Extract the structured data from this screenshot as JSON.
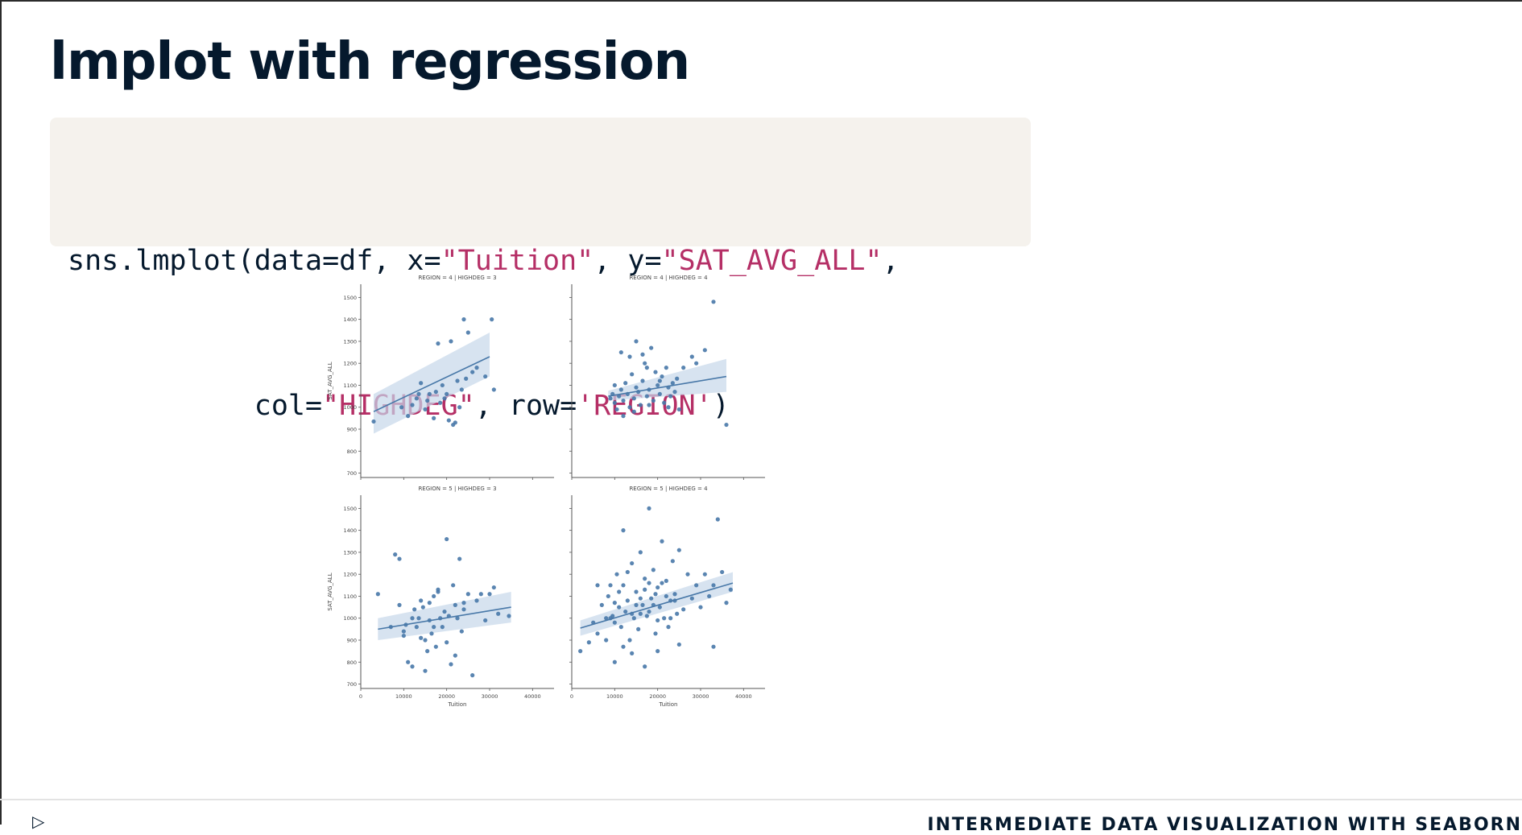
{
  "slide": {
    "title": "lmplot with regression",
    "footer": "INTERMEDIATE DATA VISUALIZATION WITH SEABORN",
    "logo_icon": "datacamp-logo-icon"
  },
  "code": {
    "line1": [
      {
        "t": "sns.lmplot(data=df, x=",
        "c": "plain"
      },
      {
        "t": "\"Tuition\"",
        "c": "str"
      },
      {
        "t": ", y=",
        "c": "plain"
      },
      {
        "t": "\"SAT_AVG_ALL\"",
        "c": "str"
      },
      {
        "t": ",",
        "c": "plain"
      }
    ],
    "line2": [
      {
        "t": "           col=",
        "c": "plain"
      },
      {
        "t": "\"HIGHDEG\"",
        "c": "str"
      },
      {
        "t": ", row=",
        "c": "plain"
      },
      {
        "t": "'REGION'",
        "c": "str"
      },
      {
        "t": ")",
        "c": "plain"
      }
    ]
  },
  "chart_data": {
    "type": "scatter",
    "point_color": "#4878a8",
    "band_color": "#c6d7ea",
    "xlabel": "Tuition",
    "ylabel": "SAT_AVG_ALL",
    "xlim": [
      0,
      45000
    ],
    "ylim": [
      680,
      1560
    ],
    "xticks": [
      0,
      10000,
      20000,
      30000,
      40000
    ],
    "yticks": [
      700,
      800,
      900,
      1000,
      1100,
      1200,
      1300,
      1400,
      1500
    ],
    "panels": [
      {
        "title": "REGION = 4 | HIGHDEG = 3",
        "row": 0,
        "col": 0,
        "regression": {
          "x": [
            3000,
            30000
          ],
          "y": [
            980,
            1230
          ],
          "band_lo": [
            880,
            1140
          ],
          "band_hi": [
            1060,
            1340
          ]
        },
        "points": [
          [
            3000,
            935
          ],
          [
            9500,
            1000
          ],
          [
            11000,
            960
          ],
          [
            12000,
            1010
          ],
          [
            13000,
            1040
          ],
          [
            13500,
            1060
          ],
          [
            14000,
            1110
          ],
          [
            15000,
            990
          ],
          [
            16000,
            1060
          ],
          [
            17000,
            950
          ],
          [
            17500,
            1070
          ],
          [
            18000,
            1290
          ],
          [
            18500,
            1020
          ],
          [
            19000,
            1100
          ],
          [
            19500,
            1040
          ],
          [
            20000,
            1060
          ],
          [
            20500,
            940
          ],
          [
            21000,
            1300
          ],
          [
            21500,
            920
          ],
          [
            22000,
            930
          ],
          [
            22500,
            1120
          ],
          [
            23000,
            1000
          ],
          [
            23500,
            1080
          ],
          [
            24000,
            1400
          ],
          [
            24500,
            1130
          ],
          [
            25000,
            1340
          ],
          [
            26000,
            1160
          ],
          [
            27000,
            1180
          ],
          [
            29000,
            1140
          ],
          [
            30500,
            1400
          ],
          [
            31000,
            1080
          ],
          [
            15500,
            1030
          ]
        ]
      },
      {
        "title": "REGION = 4 | HIGHDEG = 4",
        "row": 0,
        "col": 1,
        "regression": {
          "x": [
            8500,
            36000
          ],
          "y": [
            1050,
            1140
          ],
          "band_lo": [
            1030,
            1070
          ],
          "band_hi": [
            1075,
            1220
          ]
        },
        "points": [
          [
            9000,
            1040
          ],
          [
            9500,
            1060
          ],
          [
            10000,
            1020
          ],
          [
            10500,
            990
          ],
          [
            11000,
            1050
          ],
          [
            11500,
            1080
          ],
          [
            12000,
            1030
          ],
          [
            12500,
            1110
          ],
          [
            13000,
            1060
          ],
          [
            13500,
            1000
          ],
          [
            14000,
            1150
          ],
          [
            14500,
            1040
          ],
          [
            15000,
            1090
          ],
          [
            15500,
            1070
          ],
          [
            16000,
            1010
          ],
          [
            16500,
            1120
          ],
          [
            17000,
            1200
          ],
          [
            17500,
            1050
          ],
          [
            18000,
            1080
          ],
          [
            18500,
            1270
          ],
          [
            19000,
            1030
          ],
          [
            19500,
            1160
          ],
          [
            20000,
            1100
          ],
          [
            20500,
            1060
          ],
          [
            21000,
            1140
          ],
          [
            21500,
            1020
          ],
          [
            22000,
            1180
          ],
          [
            22500,
            1090
          ],
          [
            23000,
            1050
          ],
          [
            23500,
            1110
          ],
          [
            24000,
            1070
          ],
          [
            24500,
            1130
          ],
          [
            25000,
            990
          ],
          [
            11500,
            1250
          ],
          [
            13500,
            1230
          ],
          [
            15000,
            1300
          ],
          [
            16500,
            1240
          ],
          [
            17500,
            1180
          ],
          [
            26000,
            1180
          ],
          [
            28000,
            1230
          ],
          [
            29000,
            1200
          ],
          [
            31000,
            1260
          ],
          [
            33000,
            1480
          ],
          [
            36000,
            920
          ],
          [
            12000,
            960
          ],
          [
            14500,
            980
          ],
          [
            18000,
            1010
          ],
          [
            20500,
            1120
          ],
          [
            22500,
            1000
          ],
          [
            10000,
            1100
          ]
        ]
      },
      {
        "title": "REGION = 5 | HIGHDEG = 3",
        "row": 1,
        "col": 0,
        "regression": {
          "x": [
            4000,
            35000
          ],
          "y": [
            950,
            1050
          ],
          "band_lo": [
            900,
            980
          ],
          "band_hi": [
            1000,
            1120
          ]
        },
        "points": [
          [
            4000,
            1110
          ],
          [
            7000,
            960
          ],
          [
            8000,
            1290
          ],
          [
            9000,
            1270
          ],
          [
            10000,
            940
          ],
          [
            10500,
            970
          ],
          [
            11000,
            800
          ],
          [
            12000,
            780
          ],
          [
            12500,
            1040
          ],
          [
            13000,
            960
          ],
          [
            13500,
            1000
          ],
          [
            14000,
            910
          ],
          [
            14500,
            1050
          ],
          [
            15000,
            760
          ],
          [
            15500,
            850
          ],
          [
            16000,
            990
          ],
          [
            16500,
            930
          ],
          [
            17000,
            1100
          ],
          [
            17500,
            870
          ],
          [
            18000,
            1130
          ],
          [
            18500,
            1000
          ],
          [
            19000,
            960
          ],
          [
            19500,
            1030
          ],
          [
            20000,
            1360
          ],
          [
            20500,
            1010
          ],
          [
            21000,
            790
          ],
          [
            21500,
            1150
          ],
          [
            22000,
            1060
          ],
          [
            22500,
            1000
          ],
          [
            23000,
            1270
          ],
          [
            23500,
            940
          ],
          [
            24000,
            1040
          ],
          [
            25000,
            1110
          ],
          [
            26000,
            740
          ],
          [
            27000,
            1080
          ],
          [
            28000,
            1110
          ],
          [
            29000,
            990
          ],
          [
            30000,
            1110
          ],
          [
            31000,
            1140
          ],
          [
            32000,
            1020
          ],
          [
            34500,
            1010
          ],
          [
            16000,
            1070
          ],
          [
            18000,
            1120
          ],
          [
            12000,
            1000
          ],
          [
            14000,
            1080
          ],
          [
            20000,
            890
          ],
          [
            22000,
            830
          ],
          [
            10000,
            920
          ],
          [
            9000,
            1060
          ],
          [
            24000,
            1070
          ],
          [
            15000,
            900
          ],
          [
            17000,
            960
          ]
        ]
      },
      {
        "title": "REGION = 5 | HIGHDEG = 4",
        "row": 1,
        "col": 1,
        "regression": {
          "x": [
            2000,
            37500
          ],
          "y": [
            955,
            1160
          ],
          "band_lo": [
            920,
            1120
          ],
          "band_hi": [
            990,
            1210
          ]
        },
        "points": [
          [
            2000,
            850
          ],
          [
            4000,
            890
          ],
          [
            5000,
            980
          ],
          [
            6000,
            930
          ],
          [
            7000,
            1060
          ],
          [
            8000,
            1000
          ],
          [
            8500,
            1100
          ],
          [
            9000,
            1150
          ],
          [
            9500,
            1010
          ],
          [
            10000,
            980
          ],
          [
            10500,
            1200
          ],
          [
            11000,
            1050
          ],
          [
            11500,
            960
          ],
          [
            12000,
            1400
          ],
          [
            12500,
            1030
          ],
          [
            13000,
            1080
          ],
          [
            13500,
            900
          ],
          [
            14000,
            1250
          ],
          [
            14500,
            1000
          ],
          [
            15000,
            1120
          ],
          [
            15500,
            950
          ],
          [
            16000,
            1300
          ],
          [
            16500,
            1060
          ],
          [
            17000,
            1180
          ],
          [
            17500,
            1010
          ],
          [
            18000,
            1500
          ],
          [
            18500,
            1090
          ],
          [
            19000,
            1220
          ],
          [
            19500,
            930
          ],
          [
            20000,
            1140
          ],
          [
            20500,
            1050
          ],
          [
            21000,
            1350
          ],
          [
            21500,
            1000
          ],
          [
            22000,
            1170
          ],
          [
            22500,
            960
          ],
          [
            23000,
            1080
          ],
          [
            23500,
            1260
          ],
          [
            24000,
            1110
          ],
          [
            24500,
            1020
          ],
          [
            25000,
            1310
          ],
          [
            26000,
            1040
          ],
          [
            27000,
            1200
          ],
          [
            28000,
            1090
          ],
          [
            29000,
            1150
          ],
          [
            30000,
            1050
          ],
          [
            31000,
            1200
          ],
          [
            32000,
            1100
          ],
          [
            33000,
            1150
          ],
          [
            34000,
            1450
          ],
          [
            35000,
            1210
          ],
          [
            36000,
            1070
          ],
          [
            37000,
            1130
          ],
          [
            10000,
            1070
          ],
          [
            12000,
            1150
          ],
          [
            14000,
            1020
          ],
          [
            16000,
            1090
          ],
          [
            18000,
            1030
          ],
          [
            20000,
            990
          ],
          [
            22000,
            1100
          ],
          [
            24000,
            1080
          ],
          [
            11000,
            1120
          ],
          [
            13000,
            1210
          ],
          [
            15000,
            1060
          ],
          [
            17000,
            1130
          ],
          [
            19000,
            1060
          ],
          [
            21000,
            1160
          ],
          [
            23000,
            1000
          ],
          [
            9000,
            1000
          ],
          [
            8000,
            900
          ],
          [
            6000,
            1150
          ],
          [
            10000,
            800
          ],
          [
            17000,
            780
          ],
          [
            25000,
            880
          ],
          [
            33000,
            870
          ],
          [
            20000,
            850
          ],
          [
            14000,
            840
          ],
          [
            12000,
            870
          ],
          [
            16000,
            1020
          ],
          [
            18000,
            1160
          ],
          [
            19500,
            1110
          ]
        ]
      }
    ]
  }
}
